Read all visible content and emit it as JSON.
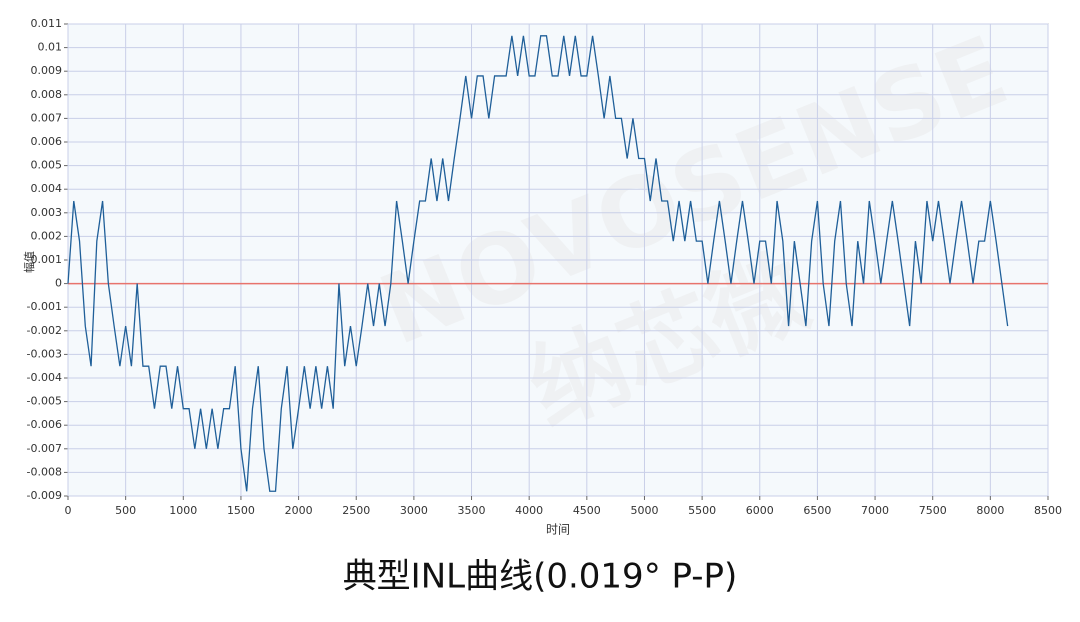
{
  "chart_data": {
    "type": "line",
    "title": "典型INL曲线(0.019° P-P)",
    "x_label": "时间",
    "y_label": "幅值",
    "watermark": {
      "text": "NOVOSENSE",
      "text_cn": "纳芯微"
    },
    "xlim": [
      0,
      8500
    ],
    "xticks": [
      0,
      500,
      1000,
      1500,
      2000,
      2500,
      3000,
      3500,
      4000,
      4500,
      5000,
      5500,
      6000,
      6500,
      7000,
      7500,
      8000,
      8500
    ],
    "ylim": [
      -0.009,
      0.011
    ],
    "yticks": [
      -0.009,
      -0.008,
      -0.007,
      -0.006,
      -0.005,
      -0.004,
      -0.003,
      -0.002,
      -0.001,
      0,
      0.001,
      0.002,
      0.003,
      0.004,
      0.005,
      0.006,
      0.007,
      0.008,
      0.009,
      0.01,
      0.011
    ],
    "grid": true,
    "reference_line": {
      "value": 0,
      "color": "#e8736c"
    },
    "x": [
      0,
      50,
      100,
      150,
      200,
      250,
      300,
      350,
      400,
      450,
      500,
      550,
      600,
      650,
      700,
      750,
      800,
      850,
      900,
      950,
      1000,
      1050,
      1100,
      1150,
      1200,
      1250,
      1300,
      1350,
      1400,
      1450,
      1500,
      1550,
      1600,
      1650,
      1700,
      1750,
      1800,
      1850,
      1900,
      1950,
      2000,
      2050,
      2100,
      2150,
      2200,
      2250,
      2300,
      2350,
      2400,
      2450,
      2500,
      2550,
      2600,
      2650,
      2700,
      2750,
      2800,
      2850,
      2900,
      2950,
      3000,
      3050,
      3100,
      3150,
      3200,
      3250,
      3300,
      3350,
      3400,
      3450,
      3500,
      3550,
      3600,
      3650,
      3700,
      3750,
      3800,
      3850,
      3900,
      3950,
      4000,
      4050,
      4100,
      4150,
      4200,
      4250,
      4300,
      4350,
      4400,
      4450,
      4500,
      4550,
      4600,
      4650,
      4700,
      4750,
      4800,
      4850,
      4900,
      4950,
      5000,
      5050,
      5100,
      5150,
      5200,
      5250,
      5300,
      5350,
      5400,
      5450,
      5500,
      5550,
      5600,
      5650,
      5700,
      5750,
      5800,
      5850,
      5900,
      5950,
      6000,
      6050,
      6100,
      6150,
      6200,
      6250,
      6300,
      6350,
      6400,
      6450,
      6500,
      6550,
      6600,
      6650,
      6700,
      6750,
      6800,
      6850,
      6900,
      6950,
      7000,
      7050,
      7100,
      7150,
      7200,
      7250,
      7300,
      7350,
      7400,
      7450,
      7500,
      7550,
      7600,
      7650,
      7700,
      7750,
      7800,
      7850,
      7900,
      7950,
      8000,
      8050,
      8100,
      8150
    ],
    "series": [
      {
        "color": "#1f5f99",
        "values": [
          0,
          0.0035,
          0.0018,
          -0.0018,
          -0.0035,
          0.0018,
          0.0035,
          0,
          -0.0018,
          -0.0035,
          -0.0018,
          -0.0035,
          0,
          -0.0035,
          -0.0035,
          -0.0053,
          -0.0035,
          -0.0035,
          -0.0053,
          -0.0035,
          -0.0053,
          -0.0053,
          -0.007,
          -0.0053,
          -0.007,
          -0.0053,
          -0.007,
          -0.0053,
          -0.0053,
          -0.0035,
          -0.007,
          -0.0088,
          -0.0053,
          -0.0035,
          -0.007,
          -0.0088,
          -0.0088,
          -0.0053,
          -0.0035,
          -0.007,
          -0.0053,
          -0.0035,
          -0.0053,
          -0.0035,
          -0.0053,
          -0.0035,
          -0.0053,
          0,
          -0.0035,
          -0.0018,
          -0.0035,
          -0.0018,
          0,
          -0.0018,
          0,
          -0.0018,
          0,
          0.0035,
          0.0018,
          0,
          0.0018,
          0.0035,
          0.0035,
          0.0053,
          0.0035,
          0.0053,
          0.0035,
          0.0053,
          0.007,
          0.0088,
          0.007,
          0.0088,
          0.0088,
          0.007,
          0.0088,
          0.0088,
          0.0088,
          0.0105,
          0.0088,
          0.0105,
          0.0088,
          0.0088,
          0.0105,
          0.0105,
          0.0088,
          0.0088,
          0.0105,
          0.0088,
          0.0105,
          0.0088,
          0.0088,
          0.0105,
          0.0088,
          0.007,
          0.0088,
          0.007,
          0.007,
          0.0053,
          0.007,
          0.0053,
          0.0053,
          0.0035,
          0.0053,
          0.0035,
          0.0035,
          0.0018,
          0.0035,
          0.0018,
          0.0035,
          0.0018,
          0.0018,
          0,
          0.0018,
          0.0035,
          0.0018,
          0,
          0.0018,
          0.0035,
          0.0018,
          0,
          0.0018,
          0.0018,
          0,
          0.0035,
          0.0018,
          -0.0018,
          0.0018,
          0,
          -0.0018,
          0.0018,
          0.0035,
          0,
          -0.0018,
          0.0018,
          0.0035,
          0,
          -0.0018,
          0.0018,
          0,
          0.0035,
          0.0018,
          0,
          0.0018,
          0.0035,
          0.0018,
          0,
          -0.0018,
          0.0018,
          0,
          0.0035,
          0.0018,
          0.0035,
          0.0018,
          0,
          0.0018,
          0.0035,
          0.0018,
          0,
          0.0018,
          0.0018,
          0.0035,
          0.0018,
          0,
          -0.0018
        ]
      }
    ]
  }
}
